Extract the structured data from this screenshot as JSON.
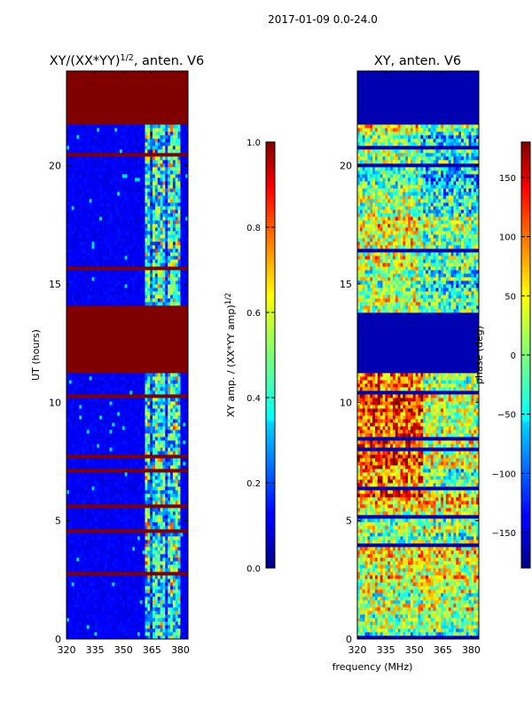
{
  "figure": {
    "suptitle": "2017-01-09 0.0-24.0",
    "xlabel_shared": "frequency (MHz)"
  },
  "chart_data": [
    {
      "type": "heatmap",
      "name": "amplitude-ratio",
      "title": "XY/(XX*YY)",
      "title_sup": "1/2",
      "title_suffix": ", anten. V6",
      "xlabel": "",
      "ylabel": "UT (hours)",
      "xlim": [
        320,
        384
      ],
      "ylim": [
        0,
        24
      ],
      "xticks": [
        320,
        335,
        350,
        365,
        380
      ],
      "yticks": [
        0,
        5,
        10,
        15,
        20
      ],
      "bad_time_bands": [
        [
          11.2,
          13.8
        ],
        [
          21.8,
          24.0
        ]
      ],
      "high_response_freq_range": [
        361,
        380
      ],
      "colorbar": {
        "label": "XY amp. / (XX*YY amp)",
        "label_sup": "1/2",
        "vmin": 0.0,
        "vmax": 1.0,
        "ticks": [
          "0.0",
          "0.2",
          "0.4",
          "0.6",
          "0.8",
          "1.0"
        ],
        "tick_values": [
          0.0,
          0.2,
          0.4,
          0.6,
          0.8,
          1.0
        ]
      }
    },
    {
      "type": "heatmap",
      "name": "xy-phase",
      "title": "XY, anten. V6",
      "xlabel": "frequency (MHz)",
      "ylabel": "",
      "xlim": [
        320,
        384
      ],
      "ylim": [
        0,
        24
      ],
      "xticks": [
        320,
        335,
        350,
        365,
        380
      ],
      "yticks": [
        0,
        5,
        10,
        15,
        20
      ],
      "bad_time_bands": [
        [
          11.2,
          13.8
        ],
        [
          21.8,
          24.0
        ]
      ],
      "colorbar": {
        "label": "phase (deg)",
        "vmin": -180,
        "vmax": 180,
        "ticks": [
          "150",
          "100",
          "50",
          "0",
          "−50",
          "−100",
          "−150"
        ],
        "tick_values": [
          150,
          100,
          50,
          0,
          -50,
          -100,
          -150
        ]
      }
    }
  ]
}
